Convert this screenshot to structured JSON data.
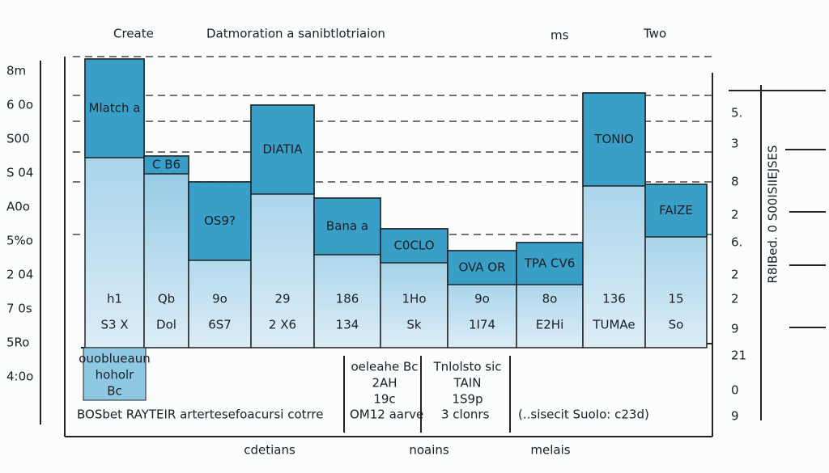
{
  "title": {
    "left": "Create",
    "main": "Datmoration a sanibtlotriaion",
    "ms": "ms",
    "right": "Two"
  },
  "left_labels": [
    "8m",
    "6 0o",
    "S00",
    "S 04",
    "A0o",
    "5%o",
    "2 04",
    "7 0s",
    "5Ro",
    "4:0o"
  ],
  "right_labels": [
    "5.",
    "3",
    "8",
    "2",
    "6.",
    "2",
    "2",
    "9",
    "21",
    "0",
    "9"
  ],
  "right_vertical": "R8IBed. 0 S00ISIIEJSES",
  "bars": [
    {
      "label": "Mlatch a",
      "mid": "h1",
      "bottom": "S3 X"
    },
    {
      "label": "C B6",
      "mid": "Qb",
      "bottom": "Dol"
    },
    {
      "label": "OS9?",
      "mid": "9o",
      "bottom": "6S7"
    },
    {
      "label": "DIATIA",
      "mid": "29",
      "bottom": "2 X6"
    },
    {
      "label": "Bana a",
      "mid": "186",
      "bottom": "134"
    },
    {
      "label": "C0CLO",
      "mid": "1Ho",
      "bottom": "Sk"
    },
    {
      "label": "OVA OR",
      "mid": "9o",
      "bottom": "1I74"
    },
    {
      "label": "TPA CV6",
      "mid": "8o",
      "bottom": "E2Hi"
    },
    {
      "label": "TONIO",
      "mid": "136",
      "bottom": "TUMAe"
    },
    {
      "label": "FAIZE",
      "mid": "15",
      "bottom": "So"
    }
  ],
  "notes": [
    {
      "lines": [
        "ouoblueaun",
        "hoholr",
        "Bc"
      ]
    },
    {
      "lines": [
        "oeleahe Bc",
        "2AH",
        "19c"
      ]
    },
    {
      "lines": [
        "Tnlolsto sic",
        "TAIN",
        "1S9p"
      ]
    }
  ],
  "footer": [
    "BOSbet RAYTEIR artertesefoacursi cotrre",
    "OM12 aarve",
    "3 clonrs",
    "(..sisecit SuoIo: c23d)"
  ],
  "bottom_labels": [
    "cdetians",
    "noains",
    "melais"
  ]
}
